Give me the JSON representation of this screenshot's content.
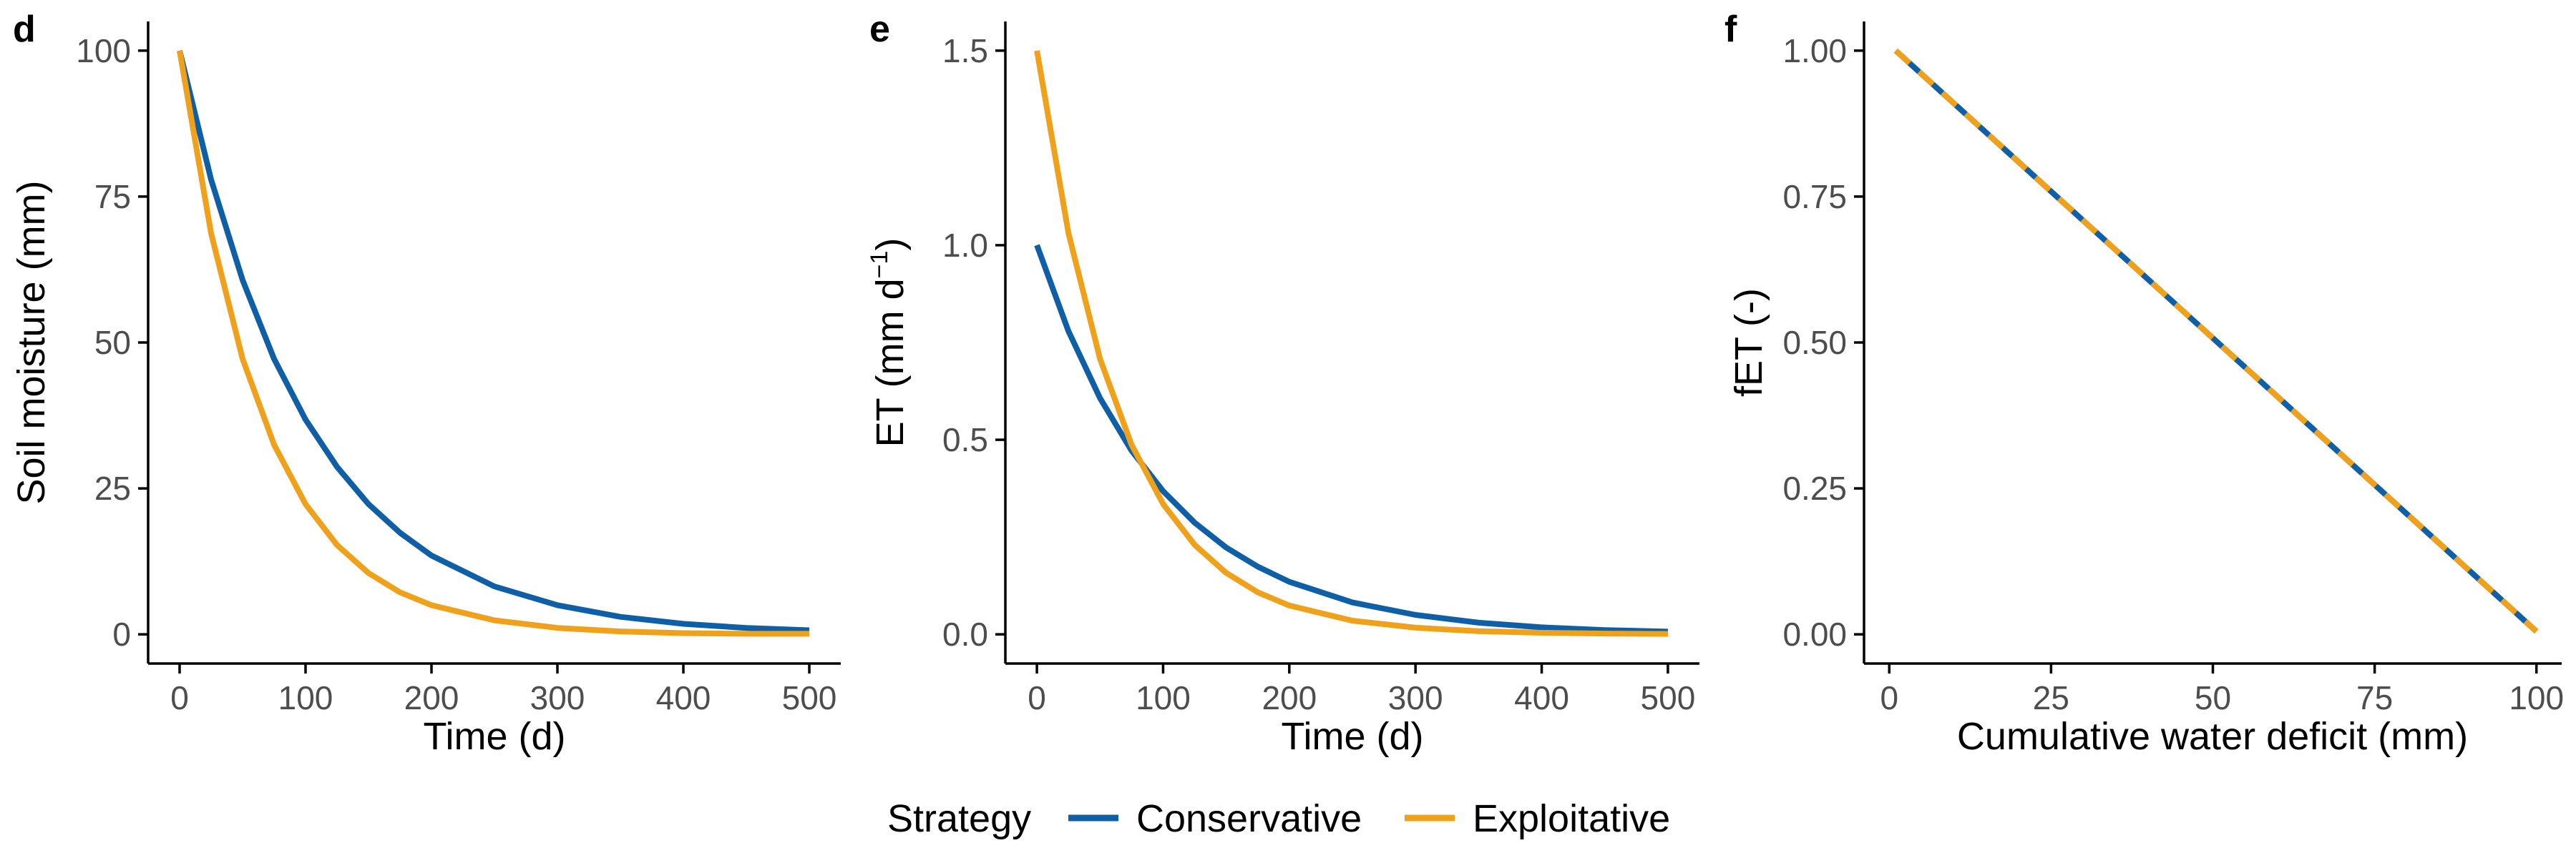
{
  "colors": {
    "conservative": "#0f5fa6",
    "exploitative": "#efa11b"
  },
  "legend": {
    "title": "Strategy",
    "entries": [
      {
        "label": "Conservative",
        "color": "#0f5fa6"
      },
      {
        "label": "Exploitative",
        "color": "#efa11b"
      }
    ]
  },
  "chart_data": [
    {
      "type": "line",
      "panel": "d",
      "xlabel": "Time (d)",
      "ylabel": "Soil moisture (mm)",
      "xlim": [
        -25,
        525
      ],
      "ylim": [
        -5,
        105
      ],
      "xticks": [
        0,
        100,
        200,
        300,
        400,
        500
      ],
      "yticks": [
        0,
        25,
        50,
        75,
        100
      ],
      "grid": false,
      "series": [
        {
          "name": "Conservative",
          "color": "#0f5fa6",
          "dash": "solid",
          "x": [
            0,
            25,
            50,
            75,
            100,
            125,
            150,
            175,
            200,
            250,
            300,
            350,
            400,
            450,
            500
          ],
          "y": [
            100,
            77.9,
            60.7,
            47.2,
            36.8,
            28.7,
            22.3,
            17.4,
            13.5,
            8.2,
            5.0,
            3.0,
            1.8,
            1.1,
            0.7
          ]
        },
        {
          "name": "Exploitative",
          "color": "#efa11b",
          "dash": "solid",
          "x": [
            0,
            25,
            50,
            75,
            100,
            125,
            150,
            175,
            200,
            250,
            300,
            350,
            400,
            450,
            500
          ],
          "y": [
            100,
            68.7,
            47.2,
            32.5,
            22.3,
            15.3,
            10.5,
            7.2,
            5.0,
            2.4,
            1.1,
            0.5,
            0.2,
            0.1,
            0.1
          ]
        }
      ]
    },
    {
      "type": "line",
      "panel": "e",
      "xlabel": "Time (d)",
      "ylabel": "ET (mm d",
      "ylabel_superscript": "−1",
      "ylabel_suffix": ")",
      "xlim": [
        -25,
        525
      ],
      "ylim": [
        -0.075,
        1.575
      ],
      "xticks": [
        0,
        100,
        200,
        300,
        400,
        500
      ],
      "yticks": [
        0.0,
        0.5,
        1.0,
        1.5
      ],
      "grid": false,
      "series": [
        {
          "name": "Conservative",
          "color": "#0f5fa6",
          "dash": "solid",
          "x": [
            0,
            25,
            50,
            75,
            100,
            125,
            150,
            175,
            200,
            250,
            300,
            350,
            400,
            450,
            500
          ],
          "y": [
            1.0,
            0.779,
            0.607,
            0.472,
            0.368,
            0.287,
            0.223,
            0.174,
            0.135,
            0.082,
            0.05,
            0.03,
            0.018,
            0.011,
            0.007
          ]
        },
        {
          "name": "Exploitative",
          "color": "#efa11b",
          "dash": "solid",
          "x": [
            0,
            25,
            50,
            75,
            100,
            125,
            150,
            175,
            200,
            250,
            300,
            350,
            400,
            450,
            500
          ],
          "y": [
            1.5,
            1.031,
            0.708,
            0.487,
            0.335,
            0.23,
            0.158,
            0.108,
            0.074,
            0.035,
            0.017,
            0.008,
            0.004,
            0.002,
            0.001
          ]
        }
      ]
    },
    {
      "type": "line",
      "panel": "f",
      "xlabel": "Cumulative water deficit (mm)",
      "ylabel": "fET (-)",
      "xlim": [
        -3.9,
        103.9
      ],
      "ylim": [
        -0.05,
        1.05
      ],
      "xticks": [
        0,
        25,
        50,
        75,
        100
      ],
      "yticks": [
        0.0,
        0.25,
        0.5,
        0.75,
        1.0
      ],
      "ytick_labels": [
        "0.00",
        "0.25",
        "0.50",
        "0.75",
        "1.00"
      ],
      "grid": false,
      "series": [
        {
          "name": "Conservative",
          "color": "#0f5fa6",
          "dash": "solid",
          "x": [
            1,
            100
          ],
          "y": [
            1.0,
            0.005
          ]
        },
        {
          "name": "Exploitative",
          "color": "#efa11b",
          "dash": "dashed",
          "x": [
            1,
            100
          ],
          "y": [
            1.0,
            0.005
          ]
        }
      ]
    }
  ]
}
